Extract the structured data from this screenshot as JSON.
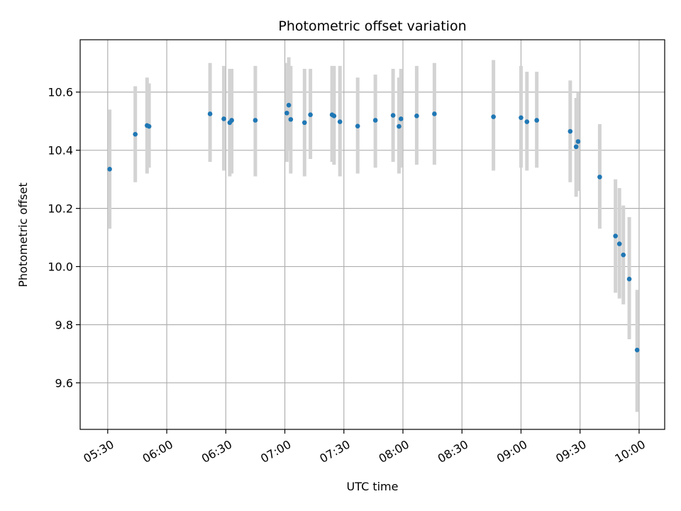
{
  "chart_data": {
    "type": "scatter",
    "title": "Photometric offset variation",
    "xlabel": "UTC time",
    "ylabel": "Photometric offset",
    "x_unit": "UTC time (HH:MM)",
    "xlim": [
      "05:16",
      "10:13"
    ],
    "ylim": [
      9.44,
      10.78
    ],
    "grid": true,
    "x_ticks": [
      "05:30",
      "06:00",
      "06:30",
      "07:00",
      "07:30",
      "08:00",
      "08:30",
      "09:00",
      "09:30",
      "10:00"
    ],
    "y_ticks": [
      9.6,
      9.8,
      10.0,
      10.2,
      10.4,
      10.6
    ],
    "y_tick_labels": [
      "9.6",
      "9.8",
      "10.0",
      "10.2",
      "10.4",
      "10.6"
    ],
    "colors": {
      "marker": "#1f77b4",
      "errorbar": "#d3d3d3",
      "grid": "#b0b0b0"
    },
    "points": [
      {
        "x": "05:31",
        "y": 10.335,
        "ylow": 10.13,
        "yhigh": 10.54
      },
      {
        "x": "05:44",
        "y": 10.455,
        "ylow": 10.29,
        "yhigh": 10.62
      },
      {
        "x": "05:50",
        "y": 10.485,
        "ylow": 10.32,
        "yhigh": 10.65
      },
      {
        "x": "05:51",
        "y": 10.482,
        "ylow": 10.34,
        "yhigh": 10.63
      },
      {
        "x": "06:22",
        "y": 10.525,
        "ylow": 10.36,
        "yhigh": 10.7
      },
      {
        "x": "06:29",
        "y": 10.508,
        "ylow": 10.33,
        "yhigh": 10.69
      },
      {
        "x": "06:32",
        "y": 10.495,
        "ylow": 10.31,
        "yhigh": 10.68
      },
      {
        "x": "06:33",
        "y": 10.503,
        "ylow": 10.32,
        "yhigh": 10.68
      },
      {
        "x": "06:45",
        "y": 10.503,
        "ylow": 10.31,
        "yhigh": 10.69
      },
      {
        "x": "07:01",
        "y": 10.528,
        "ylow": 10.36,
        "yhigh": 10.7
      },
      {
        "x": "07:02",
        "y": 10.555,
        "ylow": 10.4,
        "yhigh": 10.72
      },
      {
        "x": "07:03",
        "y": 10.506,
        "ylow": 10.32,
        "yhigh": 10.69
      },
      {
        "x": "07:10",
        "y": 10.495,
        "ylow": 10.31,
        "yhigh": 10.68
      },
      {
        "x": "07:13",
        "y": 10.522,
        "ylow": 10.37,
        "yhigh": 10.68
      },
      {
        "x": "07:24",
        "y": 10.522,
        "ylow": 10.36,
        "yhigh": 10.69
      },
      {
        "x": "07:25",
        "y": 10.518,
        "ylow": 10.35,
        "yhigh": 10.69
      },
      {
        "x": "07:28",
        "y": 10.498,
        "ylow": 10.31,
        "yhigh": 10.69
      },
      {
        "x": "07:37",
        "y": 10.483,
        "ylow": 10.32,
        "yhigh": 10.65
      },
      {
        "x": "07:46",
        "y": 10.503,
        "ylow": 10.34,
        "yhigh": 10.66
      },
      {
        "x": "07:55",
        "y": 10.52,
        "ylow": 10.36,
        "yhigh": 10.68
      },
      {
        "x": "07:58",
        "y": 10.482,
        "ylow": 10.32,
        "yhigh": 10.65
      },
      {
        "x": "07:59",
        "y": 10.508,
        "ylow": 10.34,
        "yhigh": 10.68
      },
      {
        "x": "08:07",
        "y": 10.518,
        "ylow": 10.35,
        "yhigh": 10.69
      },
      {
        "x": "08:16",
        "y": 10.525,
        "ylow": 10.35,
        "yhigh": 10.7
      },
      {
        "x": "08:46",
        "y": 10.515,
        "ylow": 10.33,
        "yhigh": 10.71
      },
      {
        "x": "09:00",
        "y": 10.512,
        "ylow": 10.34,
        "yhigh": 10.69
      },
      {
        "x": "09:03",
        "y": 10.498,
        "ylow": 10.33,
        "yhigh": 10.67
      },
      {
        "x": "09:08",
        "y": 10.503,
        "ylow": 10.34,
        "yhigh": 10.67
      },
      {
        "x": "09:25",
        "y": 10.465,
        "ylow": 10.29,
        "yhigh": 10.64
      },
      {
        "x": "09:28",
        "y": 10.412,
        "ylow": 10.24,
        "yhigh": 10.58
      },
      {
        "x": "09:29",
        "y": 10.43,
        "ylow": 10.26,
        "yhigh": 10.6
      },
      {
        "x": "09:40",
        "y": 10.308,
        "ylow": 10.13,
        "yhigh": 10.49
      },
      {
        "x": "09:48",
        "y": 10.105,
        "ylow": 9.91,
        "yhigh": 10.3
      },
      {
        "x": "09:50",
        "y": 10.078,
        "ylow": 9.89,
        "yhigh": 10.27
      },
      {
        "x": "09:52",
        "y": 10.04,
        "ylow": 9.87,
        "yhigh": 10.21
      },
      {
        "x": "09:55",
        "y": 9.957,
        "ylow": 9.75,
        "yhigh": 10.17
      },
      {
        "x": "09:59",
        "y": 9.713,
        "ylow": 9.5,
        "yhigh": 9.92
      }
    ]
  }
}
